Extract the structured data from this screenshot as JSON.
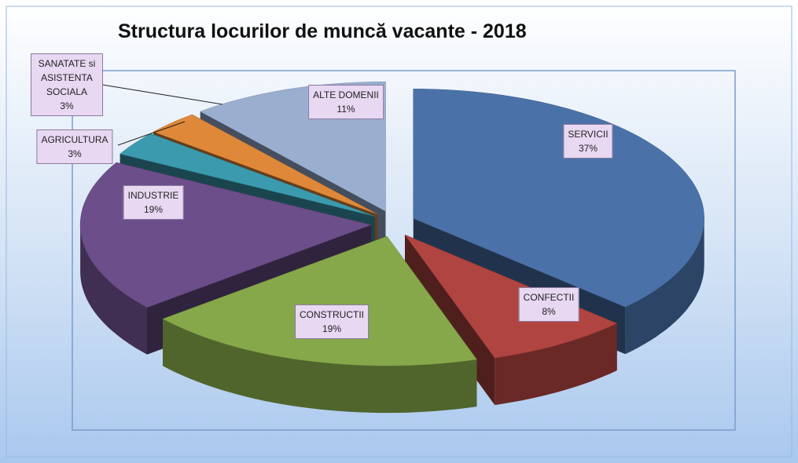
{
  "chart_data": {
    "type": "pie3d",
    "title": "Structura locurilor de muncă vacante - 2018",
    "categories": [
      "SERVICII",
      "CONFECTII",
      "CONSTRUCTII",
      "INDUSTRIE",
      "AGRICULTURA",
      "SANATATE si ASISTENTA SOCIALA",
      "ALTE DOMENII"
    ],
    "values": [
      37,
      8,
      19,
      19,
      3,
      3,
      11
    ],
    "value_labels": [
      "37%",
      "8%",
      "19%",
      "19%",
      "3%",
      "3%",
      "11%"
    ],
    "colors": [
      "#4a72a8",
      "#b04440",
      "#86a84a",
      "#6b4e8a",
      "#3b9aae",
      "#e0883a",
      "#9aaed0"
    ]
  }
}
